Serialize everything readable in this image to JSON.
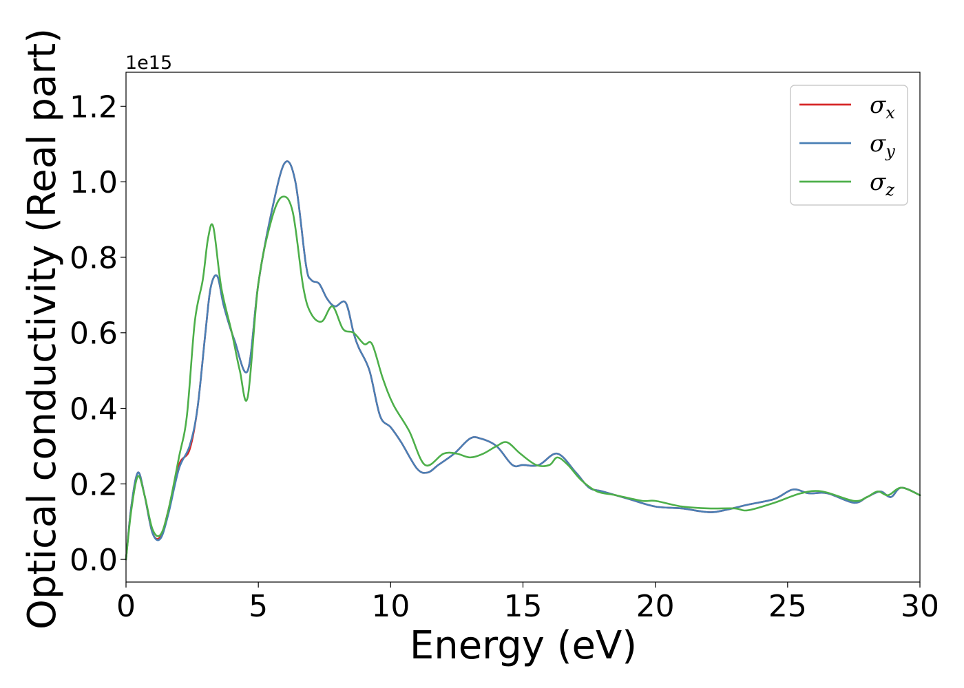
{
  "chart_data": {
    "type": "line",
    "title": "",
    "xlabel": "Energy (eV)",
    "ylabel": "Optical conductivity (Real part)",
    "y_offset_label": "1e15",
    "xlim": [
      0,
      30
    ],
    "ylim": [
      -0.06,
      1.29
    ],
    "xticks": [
      0,
      5,
      10,
      15,
      20,
      25,
      30
    ],
    "xtick_labels": [
      "0",
      "5",
      "10",
      "15",
      "20",
      "25",
      "30"
    ],
    "yticks": [
      0.0,
      0.2,
      0.4,
      0.6,
      0.8,
      1.0,
      1.2
    ],
    "ytick_labels": [
      "0.0",
      "0.2",
      "0.4",
      "0.6",
      "0.8",
      "1.0",
      "1.2"
    ],
    "grid": false,
    "legend_position": "top-right",
    "series": [
      {
        "name": "σx",
        "legend_base": "σ",
        "legend_sub": "x",
        "color": "#d62728",
        "x": [
          0,
          0.2,
          0.45,
          0.7,
          1.0,
          1.3,
          1.6,
          2.0,
          2.4,
          2.7,
          3.0,
          3.2,
          3.45,
          3.7,
          4.1,
          4.6,
          5.0,
          5.5,
          6.0,
          6.4,
          6.8,
          7.0,
          7.3,
          7.6,
          7.9,
          8.3,
          8.6,
          8.8,
          9.2,
          9.6,
          10.0,
          10.4,
          11.0,
          11.4,
          11.8,
          12.4,
          13.0,
          13.4,
          14.0,
          14.6,
          15.0,
          15.6,
          16.3,
          17.0,
          17.5,
          18.0,
          19.0,
          20.0,
          21.0,
          22.0,
          22.6,
          23.5,
          24.5,
          25.2,
          25.8,
          26.5,
          27.5,
          28.0,
          28.5,
          28.9,
          29.3,
          30.0
        ],
        "y": [
          0.0,
          0.14,
          0.23,
          0.17,
          0.07,
          0.06,
          0.13,
          0.25,
          0.29,
          0.4,
          0.6,
          0.72,
          0.75,
          0.67,
          0.58,
          0.5,
          0.73,
          0.92,
          1.05,
          1.0,
          0.78,
          0.74,
          0.73,
          0.69,
          0.67,
          0.68,
          0.6,
          0.56,
          0.5,
          0.38,
          0.35,
          0.31,
          0.24,
          0.23,
          0.25,
          0.28,
          0.32,
          0.32,
          0.3,
          0.25,
          0.25,
          0.25,
          0.28,
          0.23,
          0.19,
          0.18,
          0.16,
          0.14,
          0.135,
          0.125,
          0.13,
          0.145,
          0.16,
          0.185,
          0.175,
          0.175,
          0.15,
          0.165,
          0.18,
          0.165,
          0.19,
          0.17
        ]
      },
      {
        "name": "σy",
        "legend_base": "σ",
        "legend_sub": "y",
        "color": "#4a7fb5",
        "x": [
          0,
          0.2,
          0.45,
          0.7,
          1.0,
          1.3,
          1.6,
          2.0,
          2.4,
          2.7,
          3.0,
          3.2,
          3.45,
          3.7,
          4.1,
          4.6,
          5.0,
          5.5,
          6.0,
          6.4,
          6.8,
          7.0,
          7.3,
          7.6,
          7.9,
          8.3,
          8.6,
          8.8,
          9.2,
          9.6,
          10.0,
          10.4,
          11.0,
          11.4,
          11.8,
          12.4,
          13.0,
          13.4,
          14.0,
          14.6,
          15.0,
          15.6,
          16.3,
          17.0,
          17.5,
          18.0,
          19.0,
          20.0,
          21.0,
          22.0,
          22.6,
          23.5,
          24.5,
          25.2,
          25.8,
          26.5,
          27.5,
          28.0,
          28.5,
          28.9,
          29.3,
          30.0
        ],
        "y": [
          0.0,
          0.14,
          0.23,
          0.17,
          0.07,
          0.055,
          0.12,
          0.24,
          0.3,
          0.4,
          0.6,
          0.72,
          0.75,
          0.67,
          0.58,
          0.5,
          0.73,
          0.92,
          1.05,
          1.0,
          0.78,
          0.74,
          0.73,
          0.69,
          0.67,
          0.68,
          0.6,
          0.56,
          0.5,
          0.38,
          0.35,
          0.31,
          0.24,
          0.23,
          0.25,
          0.28,
          0.32,
          0.32,
          0.3,
          0.25,
          0.25,
          0.25,
          0.28,
          0.23,
          0.19,
          0.18,
          0.16,
          0.14,
          0.135,
          0.125,
          0.13,
          0.145,
          0.16,
          0.185,
          0.175,
          0.175,
          0.15,
          0.165,
          0.18,
          0.165,
          0.19,
          0.17
        ]
      },
      {
        "name": "σz",
        "legend_base": "σ",
        "legend_sub": "z",
        "color": "#4daf4a",
        "x": [
          0,
          0.2,
          0.45,
          0.7,
          1.0,
          1.3,
          1.6,
          2.0,
          2.3,
          2.6,
          2.9,
          3.1,
          3.3,
          3.6,
          4.0,
          4.3,
          4.6,
          5.0,
          5.5,
          5.9,
          6.3,
          6.7,
          7.0,
          7.4,
          7.8,
          8.2,
          8.6,
          9.0,
          9.3,
          9.7,
          10.1,
          10.7,
          11.3,
          12.0,
          12.5,
          13.0,
          13.5,
          14.0,
          14.4,
          14.9,
          15.5,
          16.0,
          16.3,
          16.7,
          17.2,
          17.8,
          18.5,
          19.5,
          20.0,
          21.0,
          22.0,
          23.0,
          23.5,
          24.5,
          25.5,
          26.3,
          27.5,
          28.0,
          28.4,
          28.8,
          29.3,
          30.0
        ],
        "y": [
          0.0,
          0.13,
          0.22,
          0.17,
          0.08,
          0.065,
          0.13,
          0.27,
          0.38,
          0.63,
          0.74,
          0.85,
          0.88,
          0.72,
          0.6,
          0.5,
          0.43,
          0.73,
          0.9,
          0.96,
          0.92,
          0.72,
          0.65,
          0.63,
          0.67,
          0.61,
          0.6,
          0.57,
          0.57,
          0.48,
          0.41,
          0.34,
          0.25,
          0.28,
          0.28,
          0.27,
          0.28,
          0.3,
          0.31,
          0.28,
          0.25,
          0.25,
          0.27,
          0.25,
          0.21,
          0.18,
          0.17,
          0.155,
          0.155,
          0.14,
          0.135,
          0.135,
          0.13,
          0.15,
          0.175,
          0.18,
          0.155,
          0.165,
          0.18,
          0.17,
          0.19,
          0.17
        ]
      }
    ]
  }
}
